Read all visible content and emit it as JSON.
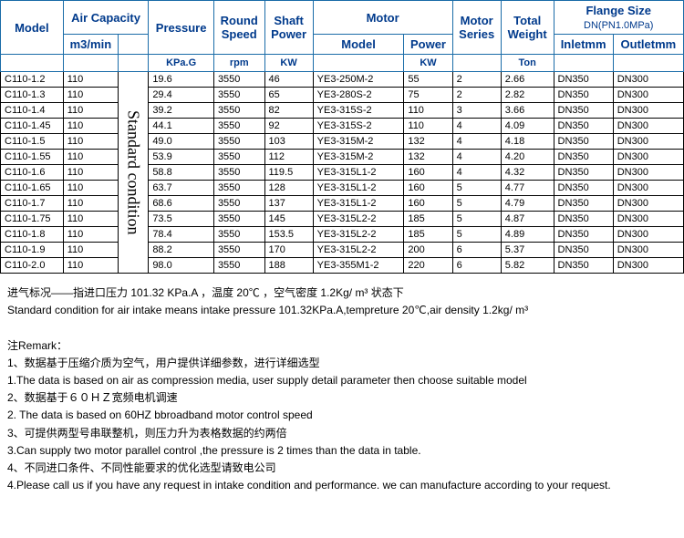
{
  "headers": {
    "model": "Model",
    "air_capacity": "Air Capacity",
    "air_unit": "m3/min",
    "blank": "",
    "pressure": "Pressure",
    "pressure_unit": "KPa.G",
    "speed": "Round Speed",
    "speed_unit": "rpm",
    "shaft": "Shaft Power",
    "shaft_unit": "KW",
    "motor": "Motor",
    "motor_model": "Model",
    "motor_power": "Power",
    "motor_power_unit": "KW",
    "motor_series": "Motor Series",
    "weight": "Total Weight",
    "weight_unit": "Ton",
    "flange": "Flange Size",
    "flange_sub": "DN(PN1.0MPa)",
    "inlet": "Inletmm",
    "outlet": "Outletmm"
  },
  "vertical_label": "Standard condition",
  "rows": [
    {
      "model": "C110-1.2",
      "air": "110",
      "press": "19.6",
      "speed": "3550",
      "shaft": "46",
      "mmodel": "YE3-250M-2",
      "mpow": "55",
      "mser": "2",
      "weight": "2.66",
      "inlet": "DN350",
      "outlet": "DN300"
    },
    {
      "model": "C110-1.3",
      "air": "110",
      "press": "29.4",
      "speed": "3550",
      "shaft": "65",
      "mmodel": "YE3-280S-2",
      "mpow": "75",
      "mser": "2",
      "weight": "2.82",
      "inlet": "DN350",
      "outlet": "DN300"
    },
    {
      "model": "C110-1.4",
      "air": "110",
      "press": "39.2",
      "speed": "3550",
      "shaft": "82",
      "mmodel": "YE3-315S-2",
      "mpow": "110",
      "mser": "3",
      "weight": "3.66",
      "inlet": "DN350",
      "outlet": "DN300"
    },
    {
      "model": "C110-1.45",
      "air": "110",
      "press": "44.1",
      "speed": "3550",
      "shaft": "92",
      "mmodel": "YE3-315S-2",
      "mpow": "110",
      "mser": "4",
      "weight": "4.09",
      "inlet": "DN350",
      "outlet": "DN300"
    },
    {
      "model": "C110-1.5",
      "air": "110",
      "press": "49.0",
      "speed": "3550",
      "shaft": "103",
      "mmodel": "YE3-315M-2",
      "mpow": "132",
      "mser": "4",
      "weight": "4.18",
      "inlet": "DN350",
      "outlet": "DN300"
    },
    {
      "model": "C110-1.55",
      "air": "110",
      "press": "53.9",
      "speed": "3550",
      "shaft": "112",
      "mmodel": "YE3-315M-2",
      "mpow": "132",
      "mser": "4",
      "weight": "4.20",
      "inlet": "DN350",
      "outlet": "DN300"
    },
    {
      "model": "C110-1.6",
      "air": "110",
      "press": "58.8",
      "speed": "3550",
      "shaft": "119.5",
      "mmodel": "YE3-315L1-2",
      "mpow": "160",
      "mser": "4",
      "weight": "4.32",
      "inlet": "DN350",
      "outlet": "DN300"
    },
    {
      "model": "C110-1.65",
      "air": "110",
      "press": "63.7",
      "speed": "3550",
      "shaft": "128",
      "mmodel": "YE3-315L1-2",
      "mpow": "160",
      "mser": "5",
      "weight": "4.77",
      "inlet": "DN350",
      "outlet": "DN300"
    },
    {
      "model": "C110-1.7",
      "air": "110",
      "press": "68.6",
      "speed": "3550",
      "shaft": "137",
      "mmodel": "YE3-315L1-2",
      "mpow": "160",
      "mser": "5",
      "weight": "4.79",
      "inlet": "DN350",
      "outlet": "DN300"
    },
    {
      "model": "C110-1.75",
      "air": "110",
      "press": "73.5",
      "speed": "3550",
      "shaft": "145",
      "mmodel": "YE3-315L2-2",
      "mpow": "185",
      "mser": "5",
      "weight": "4.87",
      "inlet": "DN350",
      "outlet": "DN300"
    },
    {
      "model": "C110-1.8",
      "air": "110",
      "press": "78.4",
      "speed": "3550",
      "shaft": "153.5",
      "mmodel": "YE3-315L2-2",
      "mpow": "185",
      "mser": "5",
      "weight": "4.89",
      "inlet": "DN350",
      "outlet": "DN300"
    },
    {
      "model": "C110-1.9",
      "air": "110",
      "press": "88.2",
      "speed": "3550",
      "shaft": "170",
      "mmodel": "YE3-315L2-2",
      "mpow": "200",
      "mser": "6",
      "weight": "5.37",
      "inlet": "DN350",
      "outlet": "DN300"
    },
    {
      "model": "C110-2.0",
      "air": "110",
      "press": "98.0",
      "speed": "3550",
      "shaft": "188",
      "mmodel": "YE3-355M1-2",
      "mpow": "220",
      "mser": "6",
      "weight": "5.82",
      "inlet": "DN350",
      "outlet": "DN300"
    }
  ],
  "notes": {
    "line1": "进气标况——指进口压力 101.32 KPa.A  ，温度 20℃  ，空气密度 1.2Kg/ m³ 状态下",
    "line2": "Standard condition for air intake means intake pressure 101.32KPa.A,tempreture 20℃,air density 1.2kg/ m³",
    "remark_title": "注Remark：",
    "r1_cn": "1、数据基于压缩介质为空气，用户提供详细参数，进行详细选型",
    "r1_en": "1.The data is based on air as compression media, user supply detail parameter then choose suitable model",
    "r2_cn": "2、数据基于６０ＨＺ宽频电机调速",
    "r2_en": "2. The data is based on 60HZ bbroadband motor  control speed",
    "r3_cn": "3、可提供两型号串联整机，则压力升为表格数据的约两倍",
    "r3_en": "3.Can supply two motor parallel control ,the pressure is 2 times than the data in table.",
    "r4_cn": "4、不同进口条件、不同性能要求的优化选型请致电公司",
    "r4_en": "4.Please call us if you have any request in intake condition and performance. we can manufacture according to your request."
  }
}
